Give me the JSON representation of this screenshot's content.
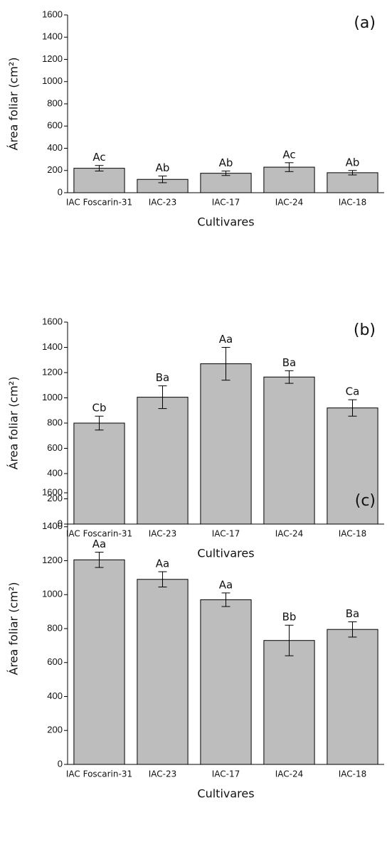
{
  "chart_data": [
    {
      "type": "bar",
      "title": "(a)",
      "x_label": "Cultivares",
      "y_label": "Área foliar (cm²)",
      "categories": [
        "IAC Foscarin-31",
        "IAC-23",
        "IAC-17",
        "IAC-24",
        "IAC-18"
      ],
      "values": [
        220,
        120,
        175,
        230,
        180
      ],
      "errors": [
        25,
        30,
        20,
        40,
        20
      ],
      "letters": [
        "Ac",
        "Ab",
        "Ab",
        "Ac",
        "Ab"
      ],
      "color": "#bdbdbd",
      "ylim": [
        0,
        1600
      ],
      "yticks": [
        0,
        200,
        400,
        600,
        800,
        1000,
        1200,
        1400,
        1600
      ]
    },
    {
      "type": "bar",
      "title": "(b)",
      "x_label": "Cultivares",
      "y_label": "Área foliar (cm²)",
      "categories": [
        "IAC Foscarin-31",
        "IAC-23",
        "IAC-17",
        "IAC-24",
        "IAC-18"
      ],
      "values": [
        800,
        1005,
        1270,
        1165,
        920
      ],
      "errors": [
        55,
        90,
        130,
        50,
        65
      ],
      "letters": [
        "Cb",
        "Ba",
        "Aa",
        "Ba",
        "Ca"
      ],
      "color": "#bdbdbd",
      "ylim": [
        0,
        1600
      ],
      "yticks": [
        0,
        200,
        400,
        600,
        800,
        1000,
        1200,
        1400,
        1600
      ]
    },
    {
      "type": "bar",
      "title": "(c)",
      "x_label": "Cultivares",
      "y_label": "Área foliar (cm²)",
      "categories": [
        "IAC Foscarin-31",
        "IAC-23",
        "IAC-17",
        "IAC-24",
        "IAC-18"
      ],
      "values": [
        1205,
        1090,
        970,
        730,
        795
      ],
      "errors": [
        45,
        45,
        40,
        90,
        45
      ],
      "letters": [
        "Aa",
        "Aa",
        "Aa",
        "Bb",
        "Ba"
      ],
      "color": "#bdbdbd",
      "ylim": [
        0,
        1600
      ],
      "yticks": [
        0,
        200,
        400,
        600,
        800,
        1000,
        1200,
        1400,
        1600
      ]
    }
  ]
}
